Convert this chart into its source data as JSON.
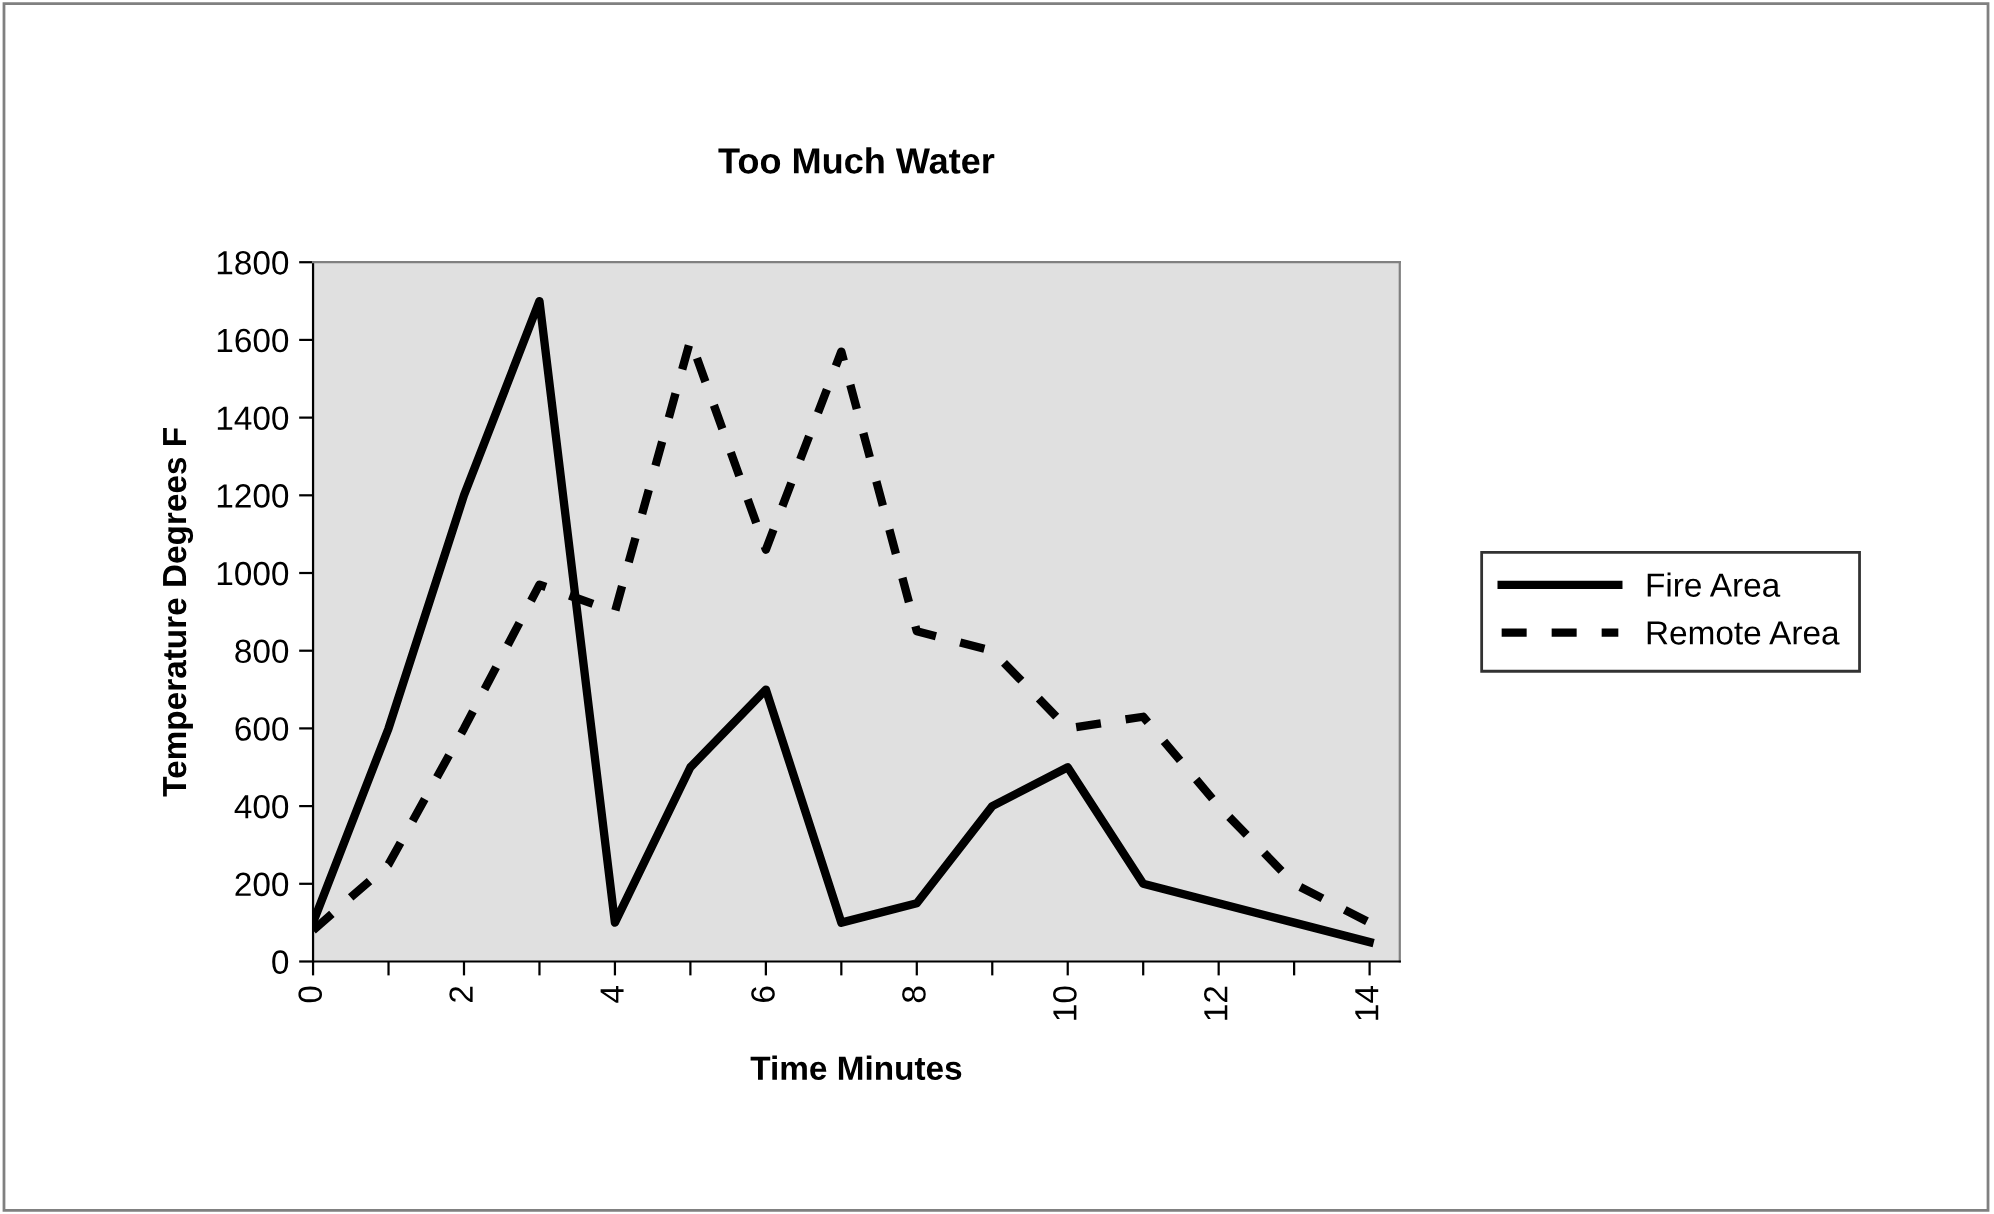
{
  "chart_data": {
    "type": "line",
    "title": "Too Much Water",
    "xlabel": "Time Minutes",
    "ylabel": "Temperature Degrees F",
    "x": [
      0,
      1,
      2,
      3,
      4,
      5,
      6,
      7,
      8,
      9,
      10,
      11,
      12,
      13,
      14
    ],
    "series": [
      {
        "name": "Fire Area",
        "color": "#000000",
        "line_style": "solid",
        "values": [
          100,
          600,
          1200,
          1700,
          100,
          500,
          700,
          100,
          150,
          400,
          500,
          200,
          150,
          100,
          50
        ]
      },
      {
        "name": "Remote Area",
        "color": "#000000",
        "line_style": "dashed",
        "values": [
          80,
          250,
          600,
          970,
          900,
          1600,
          1060,
          1570,
          850,
          800,
          600,
          630,
          400,
          200,
          100
        ]
      }
    ],
    "xlim": [
      0,
      14.4
    ],
    "xticks": [
      0,
      {
        "value": 1,
        "label": null
      },
      2,
      {
        "value": 3,
        "label": null
      },
      4,
      {
        "value": 5,
        "label": null
      },
      6,
      {
        "value": 7,
        "label": null
      },
      8,
      {
        "value": 9,
        "label": null
      },
      10,
      {
        "value": 11,
        "label": null
      },
      12,
      {
        "value": 13,
        "label": null
      },
      14
    ],
    "ylim": [
      0,
      1800
    ],
    "yticks": [
      0,
      200,
      400,
      600,
      800,
      1000,
      1200,
      1400,
      1600,
      1800
    ],
    "grid": false,
    "legend": "right",
    "marker": "none"
  }
}
